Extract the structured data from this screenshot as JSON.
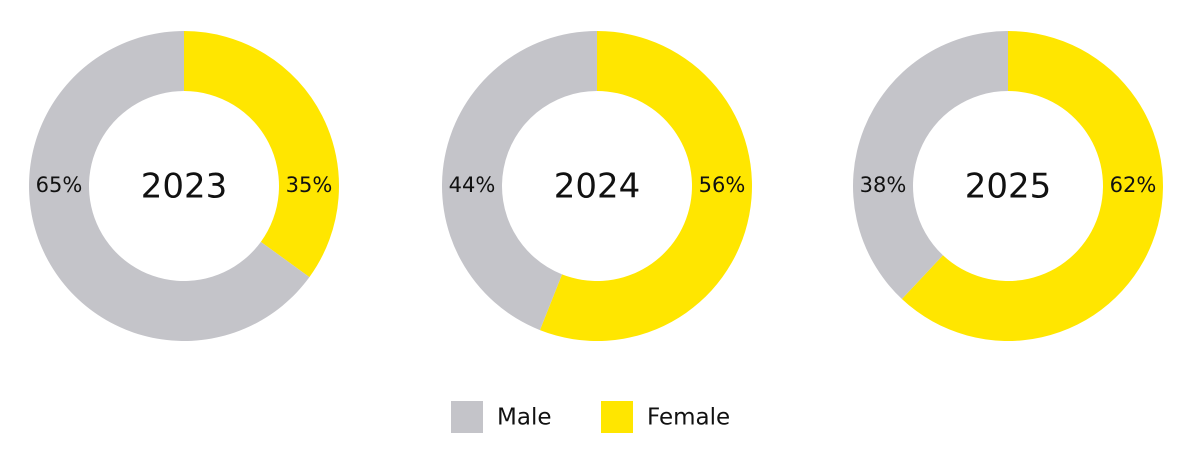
{
  "chart_data": [
    {
      "type": "donut",
      "title": "2023",
      "categories": [
        "Male",
        "Female"
      ],
      "values": [
        65,
        35
      ],
      "value_labels": [
        "65%",
        "35%"
      ],
      "colors": [
        "#c4c4c9",
        "#ffe600"
      ]
    },
    {
      "type": "donut",
      "title": "2024",
      "categories": [
        "Male",
        "Female"
      ],
      "values": [
        44,
        56
      ],
      "value_labels": [
        "44%",
        "56%"
      ],
      "colors": [
        "#c4c4c9",
        "#ffe600"
      ]
    },
    {
      "type": "donut",
      "title": "2025",
      "categories": [
        "Male",
        "Female"
      ],
      "values": [
        38,
        62
      ],
      "value_labels": [
        "38%",
        "62%"
      ],
      "colors": [
        "#c4c4c9",
        "#ffe600"
      ]
    }
  ]
}
